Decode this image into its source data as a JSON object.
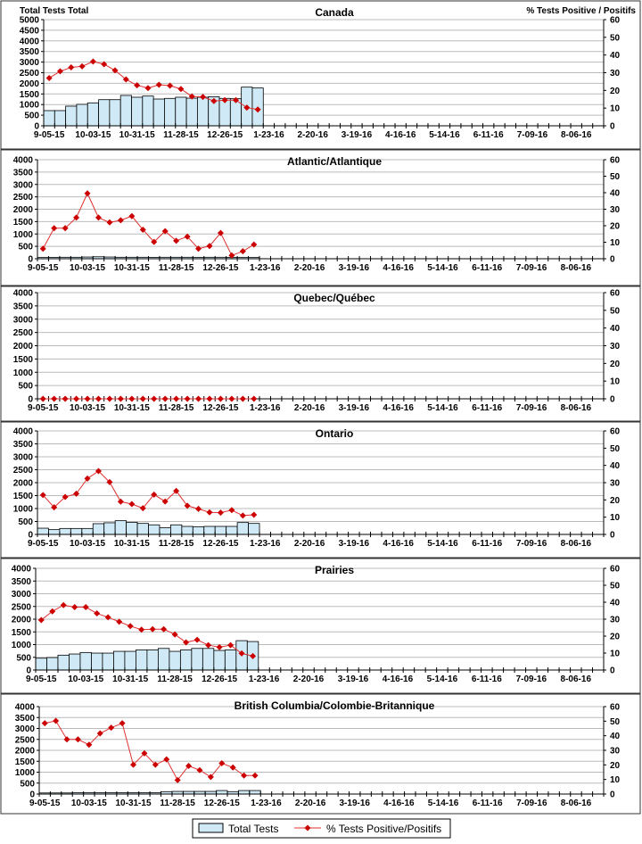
{
  "y_axis_title": "Total Tests Total",
  "y2_axis_title": "% Tests Positive / Positifs",
  "legend": {
    "bars": "Total Tests",
    "line": "% Tests Positive/Positifs"
  },
  "colors": {
    "bar_fill": "#CFEAF6",
    "bar_stroke": "#000000",
    "line": "#E03030",
    "marker": "#CC0000",
    "grid": "#BBBBBB"
  },
  "x_tick_labels": [
    "9-05-15",
    "10-03-15",
    "10-31-15",
    "11-28-15",
    "12-26-15",
    "1-23-16",
    "2-20-16",
    "3-19-16",
    "4-16-16",
    "5-14-16",
    "6-11-16",
    "7-09-16",
    "8-06-16"
  ],
  "chart_data": [
    {
      "type": "bar+line",
      "title": "Canada",
      "ylim": [
        0,
        5000
      ],
      "y_ticks": [
        0,
        500,
        1000,
        1500,
        2000,
        2500,
        3000,
        3500,
        4000,
        4500,
        5000
      ],
      "y2lim": [
        0,
        60
      ],
      "y2_ticks": [
        0,
        10,
        20,
        30,
        40,
        50,
        60
      ],
      "series": [
        {
          "name": "Total Tests",
          "values": [
            715,
            715,
            925,
            1010,
            1080,
            1230,
            1230,
            1430,
            1345,
            1400,
            1260,
            1290,
            1345,
            1300,
            1345,
            1370,
            1290,
            1275,
            1820,
            1780
          ]
        },
        {
          "name": "% Tests Positive/Positifs",
          "values": [
            27,
            30.8,
            33,
            33.6,
            36.3,
            34.8,
            31.3,
            26.2,
            22.9,
            21.3,
            23.2,
            22.7,
            20.8,
            16.6,
            16.3,
            14,
            14.5,
            14.5,
            10.3,
            9.2
          ]
        }
      ]
    },
    {
      "type": "bar+line",
      "title": "Atlantic/Atlantique",
      "ylim": [
        0,
        4000
      ],
      "y_ticks": [
        0,
        500,
        1000,
        1500,
        2000,
        2500,
        3000,
        3500,
        4000
      ],
      "y2lim": [
        0,
        60
      ],
      "y2_ticks": [
        0,
        10,
        20,
        30,
        40,
        50,
        60
      ],
      "series": [
        {
          "name": "Total Tests",
          "values": [
            50,
            55,
            60,
            60,
            70,
            80,
            70,
            60,
            60,
            60,
            55,
            60,
            60,
            60,
            55,
            60,
            60,
            55,
            50,
            50
          ]
        },
        {
          "name": "% Tests Positive/Positifs",
          "values": [
            6.1,
            18.5,
            18.5,
            24.9,
            39.6,
            24.9,
            22,
            23.3,
            25.8,
            17.6,
            10.2,
            16.7,
            10.9,
            13.4,
            6.1,
            7.7,
            15.6,
            2,
            4.5,
            8.6
          ]
        }
      ]
    },
    {
      "type": "bar+line",
      "title": "Quebec/Québec",
      "ylim": [
        0,
        4000
      ],
      "y_ticks": [
        0,
        500,
        1000,
        1500,
        2000,
        2500,
        3000,
        3500,
        4000
      ],
      "y2lim": [
        0,
        60
      ],
      "y2_ticks": [
        0,
        10,
        20,
        30,
        40,
        50,
        60
      ],
      "series": [
        {
          "name": "Total Tests",
          "values": [
            0,
            0,
            0,
            0,
            0,
            0,
            0,
            0,
            0,
            0,
            0,
            0,
            0,
            0,
            0,
            0,
            0,
            0,
            0,
            0
          ]
        },
        {
          "name": "% Tests Positive/Positifs",
          "values": [
            0,
            0,
            0,
            0,
            0,
            0,
            0,
            0,
            0,
            0,
            0,
            0,
            0,
            0,
            0,
            0,
            0,
            0,
            0,
            0
          ]
        }
      ]
    },
    {
      "type": "bar+line",
      "title": "Ontario",
      "ylim": [
        0,
        4000
      ],
      "y_ticks": [
        0,
        500,
        1000,
        1500,
        2000,
        2500,
        3000,
        3500,
        4000
      ],
      "y2lim": [
        0,
        60
      ],
      "y2_ticks": [
        0,
        10,
        20,
        30,
        40,
        50,
        60
      ],
      "series": [
        {
          "name": "Total Tests",
          "values": [
            240,
            185,
            230,
            230,
            230,
            415,
            450,
            530,
            470,
            425,
            370,
            255,
            370,
            310,
            290,
            310,
            310,
            310,
            460,
            425
          ]
        },
        {
          "name": "% Tests Positive/Positifs",
          "values": [
            22.8,
            15.7,
            21.7,
            23.6,
            32.4,
            36.7,
            30.3,
            19,
            17.6,
            15.2,
            23.1,
            19.1,
            25.2,
            16.6,
            14.8,
            12.8,
            12.6,
            14.1,
            10.9,
            11.4
          ]
        }
      ]
    },
    {
      "type": "bar+line",
      "title": "Prairies",
      "ylim": [
        0,
        4000
      ],
      "y_ticks": [
        0,
        500,
        1000,
        1500,
        2000,
        2500,
        3000,
        3500,
        4000
      ],
      "y2lim": [
        0,
        60
      ],
      "y2_ticks": [
        0,
        10,
        20,
        30,
        40,
        50,
        60
      ],
      "series": [
        {
          "name": "Total Tests",
          "values": [
            465,
            490,
            585,
            630,
            690,
            665,
            665,
            735,
            735,
            790,
            790,
            850,
            735,
            790,
            850,
            850,
            770,
            790,
            1155,
            1120
          ]
        },
        {
          "name": "% Tests Positive/Positifs",
          "values": [
            29.5,
            34.6,
            38.3,
            37.1,
            37.1,
            33.4,
            31.1,
            28.5,
            25.9,
            23.8,
            24.1,
            24.1,
            21,
            16.3,
            17.8,
            14.7,
            13.5,
            14.7,
            9.8,
            8.2
          ]
        }
      ]
    },
    {
      "type": "bar+line",
      "title": "British Columbia/Colombie-Britannique",
      "ylim": [
        0,
        4000
      ],
      "y_ticks": [
        0,
        500,
        1000,
        1500,
        2000,
        2500,
        3000,
        3500,
        4000
      ],
      "y2lim": [
        0,
        60
      ],
      "y2_ticks": [
        0,
        10,
        20,
        30,
        40,
        50,
        60
      ],
      "series": [
        {
          "name": "Total Tests",
          "values": [
            50,
            50,
            50,
            60,
            60,
            60,
            60,
            60,
            60,
            60,
            60,
            110,
            120,
            120,
            120,
            120,
            160,
            110,
            160,
            160
          ]
        },
        {
          "name": "% Tests Positive/Positifs",
          "values": [
            48.6,
            50.2,
            37.5,
            37.5,
            33.8,
            41.6,
            45.5,
            48.6,
            20.1,
            27.9,
            20.1,
            23.8,
            9.6,
            19.3,
            16.4,
            11.7,
            21.1,
            18.2,
            12.7,
            12.7
          ]
        }
      ]
    }
  ]
}
